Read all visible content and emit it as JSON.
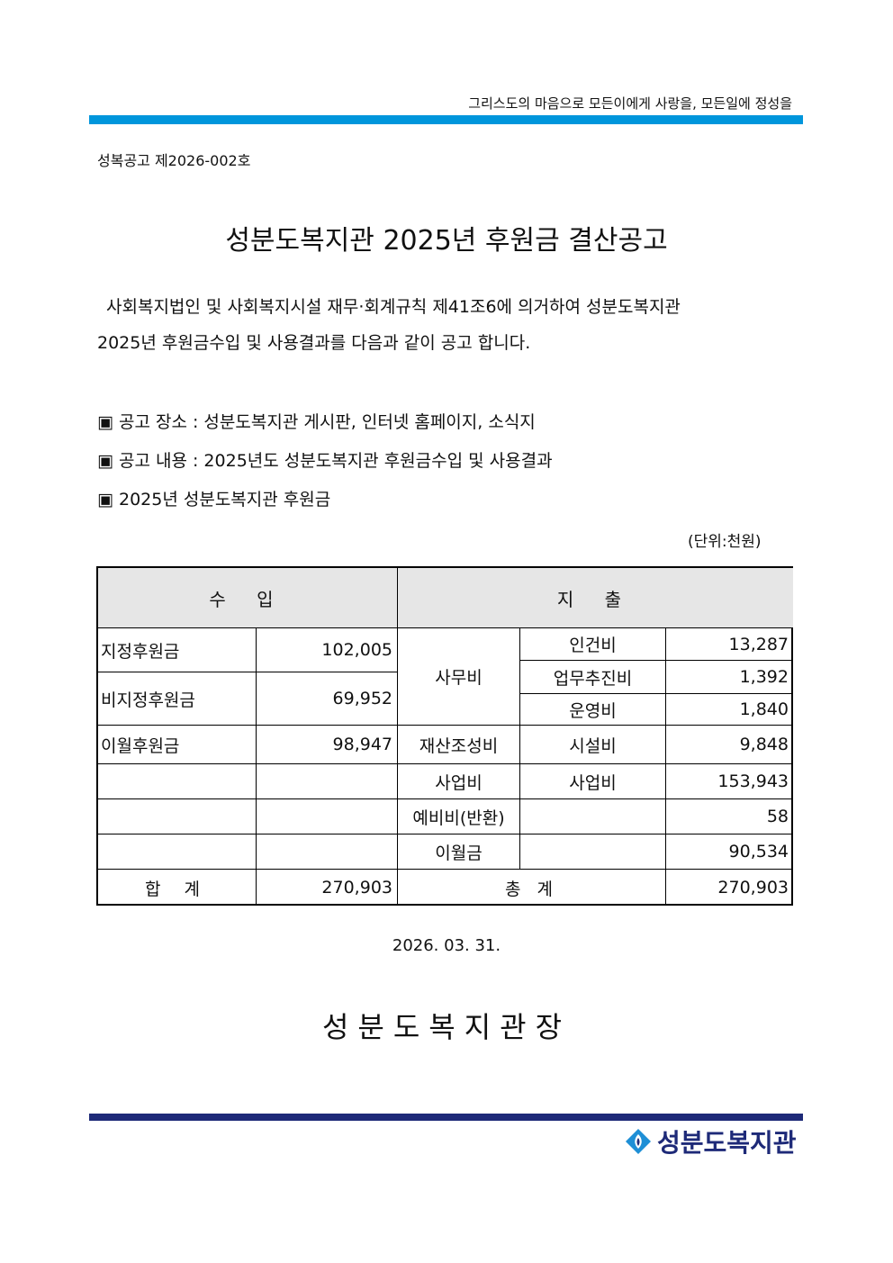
{
  "header": {
    "slogan": "그리스도의 마음으로  모든이에게 사랑을, 모든일에 정성을"
  },
  "doc_number": "성복공고 제2026-002호",
  "title": "성분도복지관 2025년 후원금 결산공고",
  "intro": {
    "line1": "사회복지법인 및 사회복지시설 재무·회계규칙 제41조6에 의거하여 성분도복지관",
    "line2": "2025년 후원금수입 및 사용결과를 다음과 같이 공고 합니다."
  },
  "bullets": [
    "▣ 공고 장소 : 성분도복지관 게시판, 인터넷 홈페이지, 소식지",
    "▣ 공고 내용 : 2025년도 성분도복지관 후원금수입 및 사용결과",
    "▣ 2025년 성분도복지관 후원금"
  ],
  "unit": "(단위:천원)",
  "table": {
    "income_header": "수 입",
    "expense_header": "지 출",
    "income": [
      {
        "label": "지정후원금",
        "value": "102,005"
      },
      {
        "label": "비지정후원금",
        "value": "69,952"
      },
      {
        "label": "이월후원금",
        "value": "98,947"
      }
    ],
    "expense": {
      "office": "사무비",
      "personnel": "인건비",
      "personnel_value": "13,287",
      "business_promo": "업무추진비",
      "business_promo_value": "1,392",
      "operation": "운영비",
      "operation_value": "1,840",
      "asset": "재산조성비",
      "facility": "시설비",
      "facility_value": "9,848",
      "program": "사업비",
      "program_sub": "사업비",
      "program_value": "153,943",
      "reserve": "예비비(반환)",
      "reserve_value": "58",
      "carryover": "이월금",
      "carryover_value": "90,534"
    },
    "income_total_label": "합  계",
    "income_total": "270,903",
    "expense_total_label": "총 계",
    "expense_total": "270,903"
  },
  "date": "2026. 03. 31.",
  "signature": "성분도복지관장",
  "logo": {
    "text": "성분도복지관",
    "color": "#1e2a78"
  },
  "colors": {
    "top_bar": "#0096dc",
    "bottom_bar": "#1e2a78"
  }
}
